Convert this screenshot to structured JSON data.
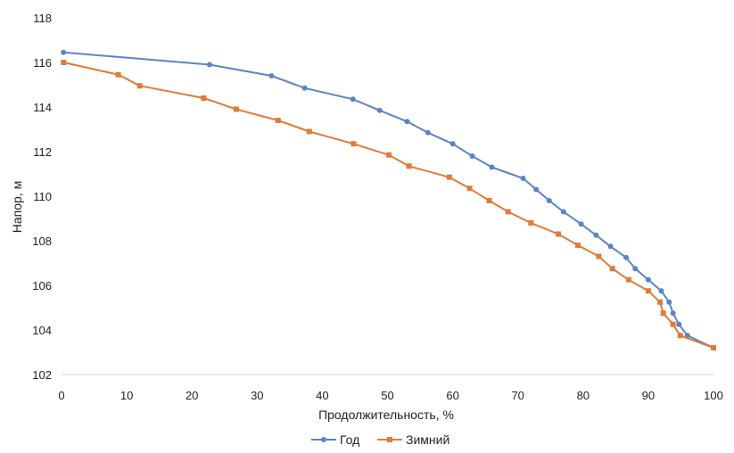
{
  "chart_data": {
    "type": "line",
    "xlabel": "Продолжительность, %",
    "ylabel": "Напор, м",
    "xlim": [
      0,
      100
    ],
    "ylim": [
      102,
      118
    ],
    "x_ticks": [
      "0",
      "10",
      "20",
      "30",
      "40",
      "50",
      "60",
      "70",
      "80",
      "90",
      "100"
    ],
    "y_ticks": [
      "102",
      "104",
      "106",
      "108",
      "110",
      "112",
      "114",
      "116",
      "118"
    ],
    "grid": false,
    "legend_position": "bottom",
    "series": [
      {
        "name": "Год",
        "color": "#5b84c4",
        "marker": "circle",
        "points": [
          [
            0.3,
            116.45
          ],
          [
            22.7,
            115.9
          ],
          [
            32.2,
            115.4
          ],
          [
            37.3,
            114.85
          ],
          [
            44.7,
            114.35
          ],
          [
            48.8,
            113.85
          ],
          [
            53.0,
            113.35
          ],
          [
            56.2,
            112.85
          ],
          [
            60.0,
            112.35
          ],
          [
            63.0,
            111.8
          ],
          [
            66.0,
            111.3
          ],
          [
            70.8,
            110.8
          ],
          [
            72.8,
            110.3
          ],
          [
            74.8,
            109.8
          ],
          [
            77.0,
            109.3
          ],
          [
            79.7,
            108.75
          ],
          [
            82.0,
            108.25
          ],
          [
            84.2,
            107.75
          ],
          [
            86.6,
            107.25
          ],
          [
            88.0,
            106.75
          ],
          [
            90.0,
            106.25
          ],
          [
            92.0,
            105.75
          ],
          [
            93.2,
            105.25
          ],
          [
            93.8,
            104.75
          ],
          [
            94.7,
            104.25
          ],
          [
            96.0,
            103.75
          ],
          [
            100.0,
            103.2
          ]
        ]
      },
      {
        "name": "Зимний",
        "color": "#e07b39",
        "marker": "square",
        "points": [
          [
            0.3,
            116.0
          ],
          [
            8.7,
            115.45
          ],
          [
            12.0,
            114.95
          ],
          [
            21.8,
            114.4
          ],
          [
            26.8,
            113.9
          ],
          [
            33.2,
            113.4
          ],
          [
            38.0,
            112.9
          ],
          [
            44.8,
            112.35
          ],
          [
            50.2,
            111.85
          ],
          [
            53.3,
            111.35
          ],
          [
            59.5,
            110.85
          ],
          [
            62.6,
            110.35
          ],
          [
            65.6,
            109.8
          ],
          [
            68.5,
            109.3
          ],
          [
            72.0,
            108.8
          ],
          [
            76.2,
            108.3
          ],
          [
            79.2,
            107.8
          ],
          [
            82.4,
            107.3
          ],
          [
            84.5,
            106.75
          ],
          [
            87.0,
            106.25
          ],
          [
            90.0,
            105.75
          ],
          [
            91.8,
            105.25
          ],
          [
            92.3,
            104.75
          ],
          [
            93.8,
            104.25
          ],
          [
            94.9,
            103.75
          ],
          [
            100.0,
            103.2
          ]
        ]
      }
    ]
  }
}
